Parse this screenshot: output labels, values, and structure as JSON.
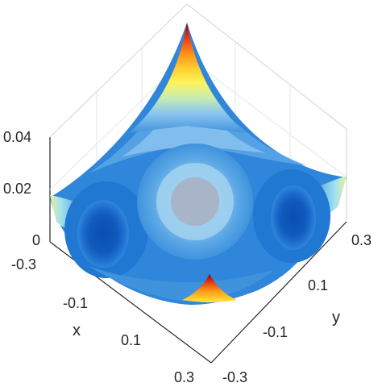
{
  "chart_data": {
    "type": "surface",
    "title": "",
    "xlabel": "x",
    "ylabel": "y",
    "zlabel": "",
    "x_ticks": [
      "-0.3",
      "-0.1",
      "0.1",
      "0.3"
    ],
    "y_ticks": [
      "-0.3",
      "-0.1",
      "0.1",
      "0.3"
    ],
    "z_ticks": [
      "0",
      "0.02",
      "0.04"
    ],
    "xlim": [
      -0.3,
      0.3
    ],
    "ylim": [
      -0.3,
      0.3
    ],
    "zlim": [
      0,
      0.04
    ],
    "grid": true,
    "colormap": [
      "#0a4fb0",
      "#1464c8",
      "#2b82d9",
      "#5aa7e6",
      "#8cc6ef",
      "#a8b4c8",
      "#9fe0f0",
      "#e6f0a0",
      "#ffe93a",
      "#ffb020",
      "#f06a12",
      "#d11a0a",
      "#7a0000"
    ],
    "features": {
      "central_peak_height": 0.015,
      "two_deep_wells_height": 0.002,
      "rim_spike_at_x_max": 0.045,
      "rim_spike_at_x_min": 0.012,
      "rim_height_at_y_extremes": 0.019
    }
  }
}
